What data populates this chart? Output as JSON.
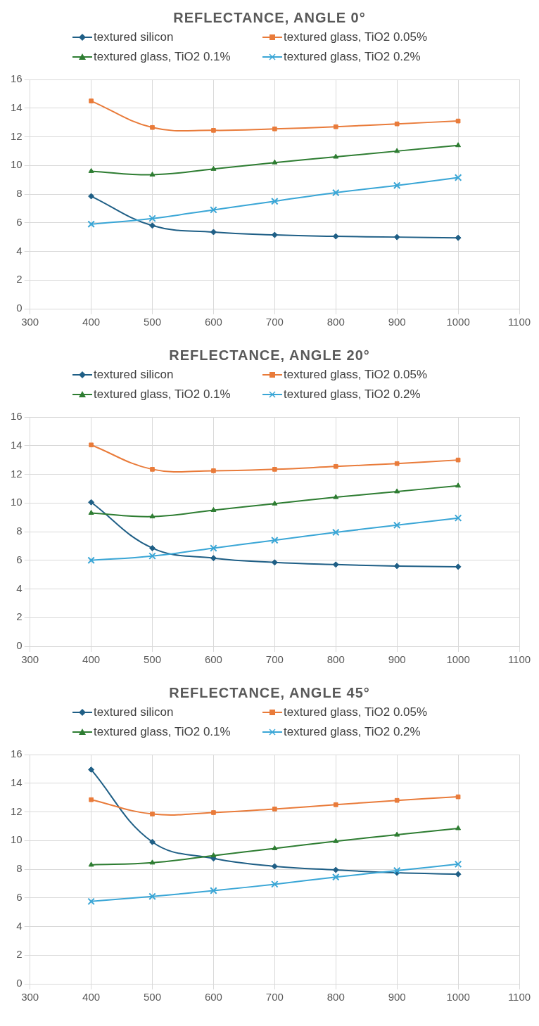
{
  "chart_data": [
    {
      "type": "line",
      "title": "REFLECTANCE, ANGLE 0°",
      "x": [
        400,
        500,
        600,
        700,
        800,
        900,
        1000
      ],
      "xlim": [
        300,
        1100
      ],
      "xticks": [
        300,
        400,
        500,
        600,
        700,
        800,
        900,
        1000,
        1100
      ],
      "ylim": [
        0,
        16
      ],
      "yticks": [
        0,
        2,
        4,
        6,
        8,
        10,
        12,
        14,
        16
      ],
      "grid": true,
      "legend": "top",
      "series": [
        {
          "name": "textured silicon",
          "color": "#1f5f86",
          "marker": "diamond",
          "values": [
            7.85,
            5.8,
            5.35,
            5.15,
            5.05,
            5.0,
            4.95
          ]
        },
        {
          "name": "textured glass, TiO2 0.05%",
          "color": "#e97b3a",
          "marker": "square",
          "values": [
            14.5,
            12.65,
            12.45,
            12.55,
            12.7,
            12.9,
            13.1
          ]
        },
        {
          "name": "textured glass, TiO2 0.1%",
          "color": "#2e7d32",
          "marker": "triangle",
          "values": [
            9.6,
            9.35,
            9.75,
            10.2,
            10.6,
            11.0,
            11.4
          ]
        },
        {
          "name": "textured glass, TiO2 0.2%",
          "color": "#3aa6d6",
          "marker": "cross",
          "values": [
            5.9,
            6.3,
            6.9,
            7.5,
            8.1,
            8.6,
            9.15
          ]
        }
      ]
    },
    {
      "type": "line",
      "title": "REFLECTANCE, ANGLE 20°",
      "x": [
        400,
        500,
        600,
        700,
        800,
        900,
        1000
      ],
      "xlim": [
        300,
        1100
      ],
      "xticks": [
        300,
        400,
        500,
        600,
        700,
        800,
        900,
        1000,
        1100
      ],
      "ylim": [
        0,
        16
      ],
      "yticks": [
        0,
        2,
        4,
        6,
        8,
        10,
        12,
        14,
        16
      ],
      "grid": true,
      "legend": "top",
      "series": [
        {
          "name": "textured silicon",
          "color": "#1f5f86",
          "marker": "diamond",
          "values": [
            10.05,
            6.85,
            6.15,
            5.85,
            5.7,
            5.6,
            5.55
          ]
        },
        {
          "name": "textured glass, TiO2 0.05%",
          "color": "#e97b3a",
          "marker": "square",
          "values": [
            14.05,
            12.35,
            12.25,
            12.35,
            12.55,
            12.75,
            13.0
          ]
        },
        {
          "name": "textured glass, TiO2 0.1%",
          "color": "#2e7d32",
          "marker": "triangle",
          "values": [
            9.3,
            9.05,
            9.5,
            9.95,
            10.4,
            10.8,
            11.2
          ]
        },
        {
          "name": "textured glass, TiO2 0.2%",
          "color": "#3aa6d6",
          "marker": "cross",
          "values": [
            6.0,
            6.3,
            6.85,
            7.4,
            7.95,
            8.45,
            8.95
          ]
        }
      ]
    },
    {
      "type": "line",
      "title": "REFLECTANCE, ANGLE 45°",
      "x": [
        400,
        500,
        600,
        700,
        800,
        900,
        1000
      ],
      "xlim": [
        300,
        1100
      ],
      "xticks": [
        300,
        400,
        500,
        600,
        700,
        800,
        900,
        1000,
        1100
      ],
      "ylim": [
        0,
        16
      ],
      "yticks": [
        0,
        2,
        4,
        6,
        8,
        10,
        12,
        14,
        16
      ],
      "grid": true,
      "legend": "top",
      "series": [
        {
          "name": "textured silicon",
          "color": "#1f5f86",
          "marker": "diamond",
          "values": [
            14.95,
            9.9,
            8.75,
            8.2,
            7.95,
            7.75,
            7.65
          ]
        },
        {
          "name": "textured glass, TiO2 0.05%",
          "color": "#e97b3a",
          "marker": "square",
          "values": [
            12.85,
            11.85,
            11.95,
            12.2,
            12.5,
            12.8,
            13.05
          ]
        },
        {
          "name": "textured glass, TiO2 0.1%",
          "color": "#2e7d32",
          "marker": "triangle",
          "values": [
            8.3,
            8.45,
            8.95,
            9.45,
            9.95,
            10.4,
            10.85
          ]
        },
        {
          "name": "textured glass, TiO2 0.2%",
          "color": "#3aa6d6",
          "marker": "cross",
          "values": [
            5.75,
            6.1,
            6.5,
            6.95,
            7.45,
            7.9,
            8.35
          ]
        }
      ]
    }
  ]
}
